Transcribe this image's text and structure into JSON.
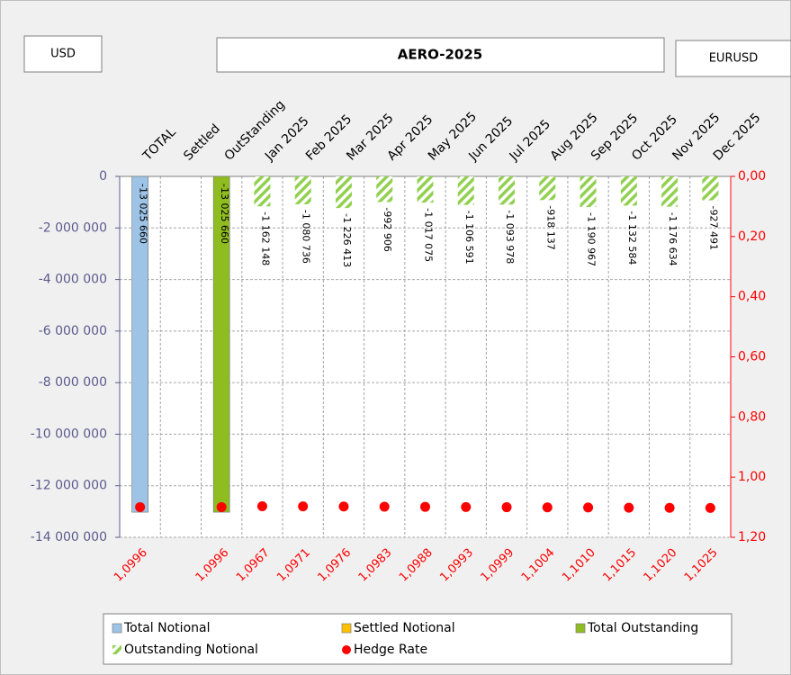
{
  "chart_data": {
    "type": "bar",
    "header_left": "USD",
    "title": "AERO-2025",
    "header_right": "EURUSD",
    "categories": [
      "TOTAL",
      "Settled",
      "OutStanding",
      "Jan 2025",
      "Feb 2025",
      "Mar 2025",
      "Apr 2025",
      "May 2025",
      "Jun 2025",
      "Jul 2025",
      "Aug 2025",
      "Sep 2025",
      "Oct 2025",
      "Nov 2025",
      "Dec 2025"
    ],
    "ylim": [
      -14000000,
      0
    ],
    "yticks": [
      0,
      {
        "value": -2000000,
        "label": "-2 000 000"
      },
      {
        "value": -4000000,
        "label": "-4 000 000"
      },
      {
        "value": -6000000,
        "label": "-6 000 000"
      },
      {
        "value": -8000000,
        "label": "-8 000 000"
      },
      {
        "value": -10000000,
        "label": "-10 000 000"
      },
      {
        "value": -12000000,
        "label": "-12 000 000"
      },
      {
        "value": -14000000,
        "label": "-14 000 000"
      }
    ],
    "y2lim": [
      0,
      1.2
    ],
    "y2_inverted": true,
    "y2ticks": [
      {
        "value": 0,
        "label": "0,00"
      },
      {
        "value": 0.2,
        "label": "0,20"
      },
      {
        "value": 0.4,
        "label": "0,40"
      },
      {
        "value": 0.6,
        "label": "0,60"
      },
      {
        "value": 0.8,
        "label": "0,80"
      },
      {
        "value": 1.0,
        "label": "1,00"
      },
      {
        "value": 1.2,
        "label": "1,20"
      }
    ],
    "grid": true,
    "series": [
      {
        "name": "Total Notional",
        "color": "#9dc3e6",
        "kind": "bar",
        "values": [
          -13025660,
          null,
          null,
          null,
          null,
          null,
          null,
          null,
          null,
          null,
          null,
          null,
          null,
          null,
          null
        ],
        "value_labels": [
          "-13 025 660",
          null,
          null,
          null,
          null,
          null,
          null,
          null,
          null,
          null,
          null,
          null,
          null,
          null,
          null
        ]
      },
      {
        "name": "Settled Notional",
        "color": "#ffc000",
        "kind": "bar",
        "values": [
          null,
          null,
          null,
          null,
          null,
          null,
          null,
          null,
          null,
          null,
          null,
          null,
          null,
          null,
          null
        ]
      },
      {
        "name": "Total Outstanding",
        "color": "#8fbc1f",
        "kind": "bar",
        "values": [
          null,
          null,
          -13025660,
          null,
          null,
          null,
          null,
          null,
          null,
          null,
          null,
          null,
          null,
          null,
          null
        ],
        "value_labels": [
          null,
          null,
          "-13 025 660",
          null,
          null,
          null,
          null,
          null,
          null,
          null,
          null,
          null,
          null,
          null,
          null
        ]
      },
      {
        "name": "Outstanding Notional",
        "color": "#92d050",
        "kind": "bar",
        "pattern": "hatch",
        "values": [
          null,
          null,
          null,
          -1162148,
          -1080736,
          -1226413,
          -992906,
          -1017075,
          -1106591,
          -1093978,
          -918137,
          -1190967,
          -1132584,
          -1176634,
          -927491
        ],
        "value_labels": [
          null,
          null,
          null,
          "-1 162 148",
          "-1 080 736",
          "-1 226 413",
          "-992 906",
          "-1 017 075",
          "-1 106 591",
          "-1 093 978",
          "-918 137",
          "-1 190 967",
          "-1 132 584",
          "-1 176 634",
          "-927 491"
        ]
      },
      {
        "name": "Hedge Rate",
        "color": "#ff0000",
        "kind": "dot",
        "axis": "y2",
        "values": [
          1.0996,
          null,
          1.0996,
          1.0967,
          1.0971,
          1.0976,
          1.0983,
          1.0988,
          1.0993,
          1.0999,
          1.1004,
          1.101,
          1.1015,
          1.102,
          1.1025
        ],
        "value_labels": [
          "1,0996",
          null,
          "1,0996",
          "1,0967",
          "1,0971",
          "1,0976",
          "1,0983",
          "1,0988",
          "1,0993",
          "1,0999",
          "1,1004",
          "1,1010",
          "1,1015",
          "1,1020",
          "1,1025"
        ]
      }
    ]
  }
}
